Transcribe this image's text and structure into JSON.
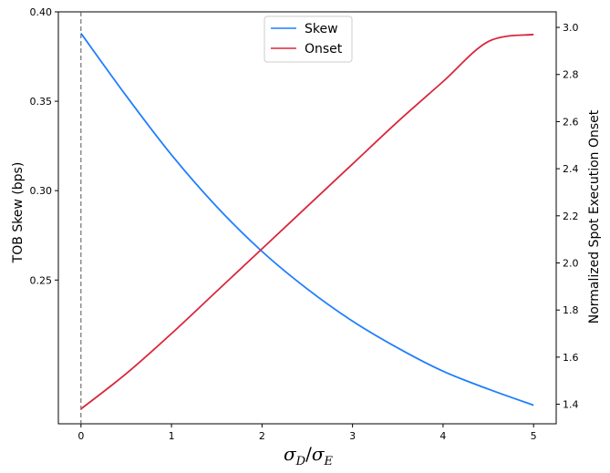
{
  "chart_data": {
    "type": "line",
    "xlabel": "σD/σE",
    "xlabel_parts": {
      "sym1": "σ",
      "sub1": "D",
      "sep": "/",
      "sym2": "σ",
      "sub2": "E"
    },
    "ylabel_left": "TOB Skew (bps)",
    "ylabel_right": "Normalized Spot Execution Onset",
    "xlim": [
      -0.25,
      5.25
    ],
    "ylim_left": [
      0.1696,
      0.4
    ],
    "ylim_right": [
      1.317,
      3.066
    ],
    "x_ticks": [
      0,
      1,
      2,
      3,
      4,
      5
    ],
    "y_ticks_left": [
      0.25,
      0.3,
      0.35,
      0.4
    ],
    "y_ticks_right": [
      1.4,
      1.6,
      1.8,
      2.0,
      2.2,
      2.4,
      2.6,
      2.8,
      3.0
    ],
    "vertical_line_x": 0,
    "legend_position": "top-center",
    "grid": false,
    "series": [
      {
        "name": "Skew",
        "axis": "left",
        "color": "#1f7eff",
        "x": [
          0,
          0.5,
          1,
          1.5,
          2,
          2.5,
          3,
          3.5,
          4,
          4.5,
          5
        ],
        "values": [
          0.388,
          0.353,
          0.32,
          0.291,
          0.266,
          0.245,
          0.227,
          0.212,
          0.199,
          0.189,
          0.18
        ]
      },
      {
        "name": "Onset",
        "axis": "right",
        "color": "#d8283d",
        "x": [
          0,
          0.5,
          1,
          1.5,
          2,
          2.5,
          3,
          3.5,
          4,
          4.5,
          5
        ],
        "values": [
          1.38,
          1.53,
          1.7,
          1.88,
          2.06,
          2.24,
          2.42,
          2.6,
          2.77,
          2.94,
          2.97
        ]
      }
    ]
  }
}
